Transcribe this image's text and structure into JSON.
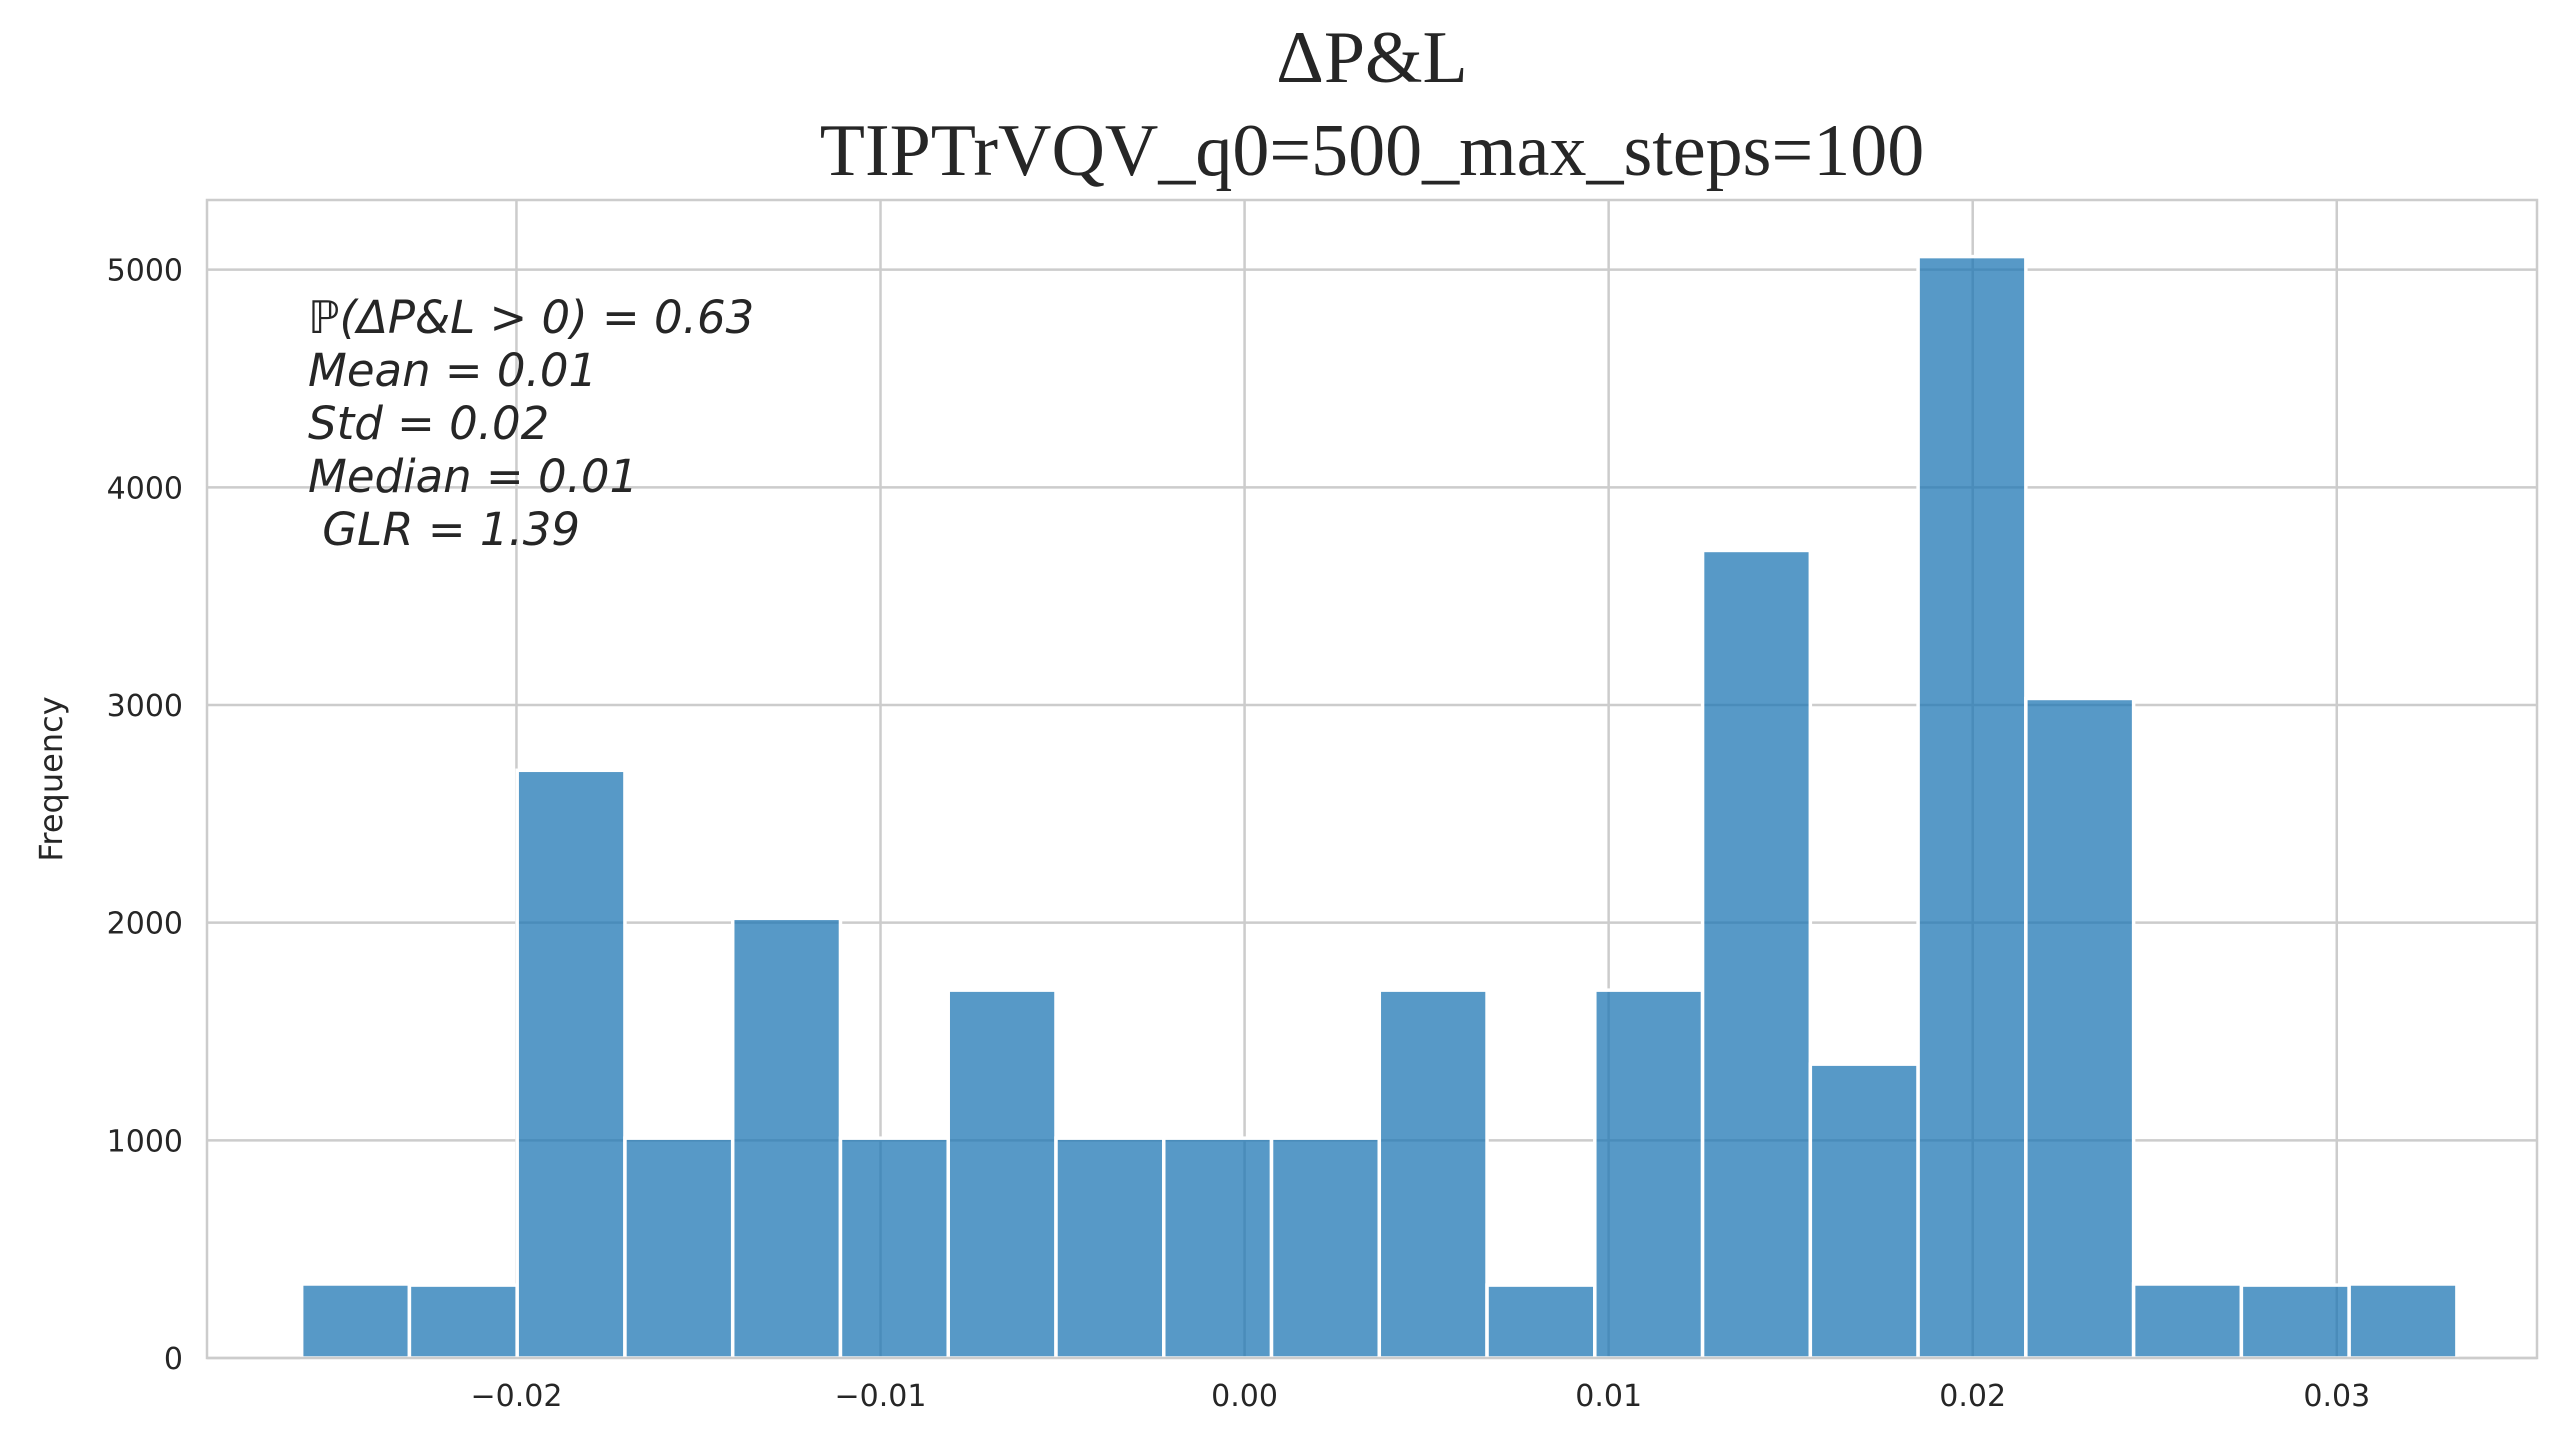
{
  "chart_data": {
    "type": "bar",
    "title": "ΔP&L",
    "subtitle": "TIPTrVQV_q0=500_max_steps=100",
    "xlabel": "",
    "ylabel": "Frequency",
    "xlim": [
      -0.0285,
      0.0355
    ],
    "ylim": [
      0,
      5320
    ],
    "x_ticks": [
      -0.02,
      -0.01,
      0.0,
      0.01,
      0.02,
      0.03
    ],
    "x_tick_labels": [
      "−0.02",
      "−0.01",
      "0.00",
      "0.01",
      "0.02",
      "0.03"
    ],
    "y_ticks": [
      0,
      1000,
      2000,
      3000,
      4000,
      5000
    ],
    "y_tick_labels": [
      "0",
      "1000",
      "2000",
      "3000",
      "4000",
      "5000"
    ],
    "grid": true,
    "bin_edges": [
      -0.0259,
      -0.02294,
      -0.01998,
      -0.01702,
      -0.01406,
      -0.0111,
      -0.00814,
      -0.00518,
      -0.00222,
      0.00074,
      0.0037,
      0.00666,
      0.00962,
      0.01258,
      0.01554,
      0.0185,
      0.02146,
      0.02442,
      0.02738,
      0.03034,
      0.0333
    ],
    "values": [
      340,
      335,
      2700,
      1010,
      2020,
      1010,
      1690,
      1010,
      1010,
      1010,
      1690,
      335,
      1690,
      3710,
      1350,
      5060,
      3030,
      340,
      335,
      340
    ],
    "annotations": [
      "ℙ(ΔP&L > 0) = 0.63",
      "Mean = 0.01",
      "Std = 0.02",
      "Median = 0.01",
      " GLR = 1.39"
    ],
    "color": "#1f77b4"
  }
}
